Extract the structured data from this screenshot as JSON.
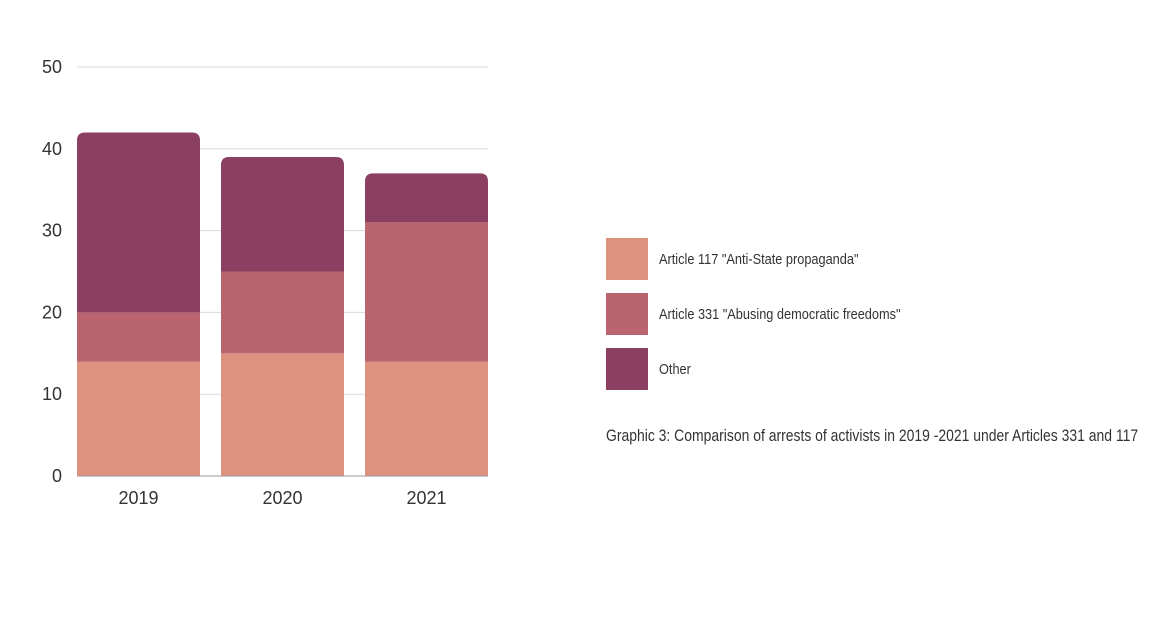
{
  "chart_data": {
    "type": "bar",
    "stacked": true,
    "categories": [
      "2019",
      "2020",
      "2021"
    ],
    "series": [
      {
        "name": "Article 117 \"Anti-State propaganda\"",
        "color": "#de917e",
        "values": [
          14,
          15,
          14
        ]
      },
      {
        "name": "Article 331 \"Abusing democratic freedoms\"",
        "color": "#b9646e",
        "values": [
          6,
          10,
          17
        ]
      },
      {
        "name": "Other",
        "color": "#8b4061",
        "values": [
          22,
          14,
          6
        ]
      }
    ],
    "ylim": [
      0,
      50
    ],
    "yticks": [
      "0",
      "10",
      "20",
      "30",
      "40",
      "50"
    ],
    "grid": true,
    "legend_position": "right"
  },
  "caption": "Graphic 3: Comparison of arrests of activists in 2019 -2021 under Articles 331 and 117"
}
